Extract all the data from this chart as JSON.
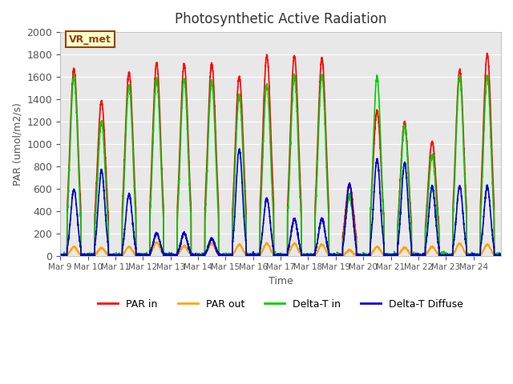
{
  "title": "Photosynthetic Active Radiation",
  "ylabel": "PAR (umol/m2/s)",
  "xlabel": "Time",
  "ylim": [
    0,
    2000
  ],
  "background_color": "#e8e8e8",
  "annotation_text": "VR_met",
  "annotation_bg": "#ffffcc",
  "annotation_border": "#8B4513",
  "x_tick_labels": [
    "Mar 9",
    "Mar 10",
    "Mar 11",
    "Mar 12",
    "Mar 13",
    "Mar 14",
    "Mar 15",
    "Mar 16",
    "Mar 17",
    "Mar 18",
    "Mar 19",
    "Mar 20",
    "Mar 21",
    "Mar 22",
    "Mar 23",
    "Mar 24"
  ],
  "x_tick_positions": [
    0,
    1,
    2,
    3,
    4,
    5,
    6,
    7,
    8,
    9,
    10,
    11,
    12,
    13,
    14,
    15
  ],
  "num_days": 16,
  "series": {
    "PAR_in": {
      "color": "#ff0000",
      "label": "PAR in",
      "linewidth": 1.2
    },
    "PAR_out": {
      "color": "#ffa500",
      "label": "PAR out",
      "linewidth": 1.2
    },
    "Delta_T_in": {
      "color": "#00cc00",
      "label": "Delta-T in",
      "linewidth": 1.2
    },
    "Delta_T_Diffuse": {
      "color": "#0000cd",
      "label": "Delta-T Diffuse",
      "linewidth": 1.2
    }
  },
  "legend_ncol": 4,
  "par_in_peaks": [
    1670,
    1380,
    1640,
    1720,
    1710,
    1720,
    1600,
    1790,
    1790,
    1760,
    640,
    1290,
    1190,
    1020,
    1660,
    1800
  ],
  "par_out_peaks": [
    80,
    70,
    80,
    120,
    90,
    110,
    100,
    110,
    110,
    100,
    50,
    80,
    75,
    80,
    110,
    100
  ],
  "delta_t_peaks": [
    1600,
    1200,
    1520,
    1580,
    1580,
    1560,
    1430,
    1530,
    1610,
    1610,
    530,
    1600,
    1160,
    900,
    1600,
    1600
  ],
  "delta_d_peaks": [
    590,
    760,
    550,
    200,
    200,
    150,
    950,
    510,
    330,
    330,
    640,
    860,
    830,
    620,
    620,
    620
  ],
  "yticks": [
    0,
    200,
    400,
    600,
    800,
    1000,
    1200,
    1400,
    1600,
    1800,
    2000
  ]
}
